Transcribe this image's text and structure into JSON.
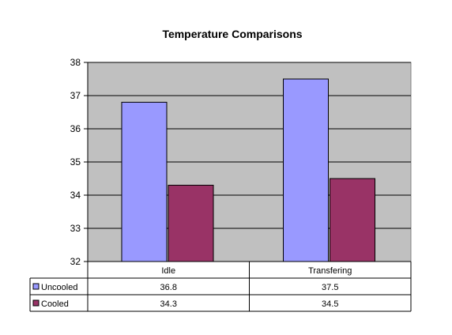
{
  "chart_data": {
    "type": "bar",
    "title": "Temperature Comparisons",
    "categories": [
      "Idle",
      "Transfering"
    ],
    "series": [
      {
        "name": "Uncooled",
        "values": [
          36.8,
          37.5
        ],
        "color": "#9999ff"
      },
      {
        "name": "Cooled",
        "values": [
          34.3,
          34.5
        ],
        "color": "#993366"
      }
    ],
    "ylim": [
      32,
      38
    ],
    "yticks": [
      "32",
      "33",
      "34",
      "35",
      "36",
      "37",
      "38"
    ],
    "plot_background": "#c0c0c0",
    "grid": true,
    "legend": "data-table",
    "data_table": {
      "rows": [
        {
          "label": "Uncooled",
          "values": [
            "36.8",
            "37.5"
          ]
        },
        {
          "label": "Cooled",
          "values": [
            "34.3",
            "34.5"
          ]
        }
      ]
    }
  }
}
